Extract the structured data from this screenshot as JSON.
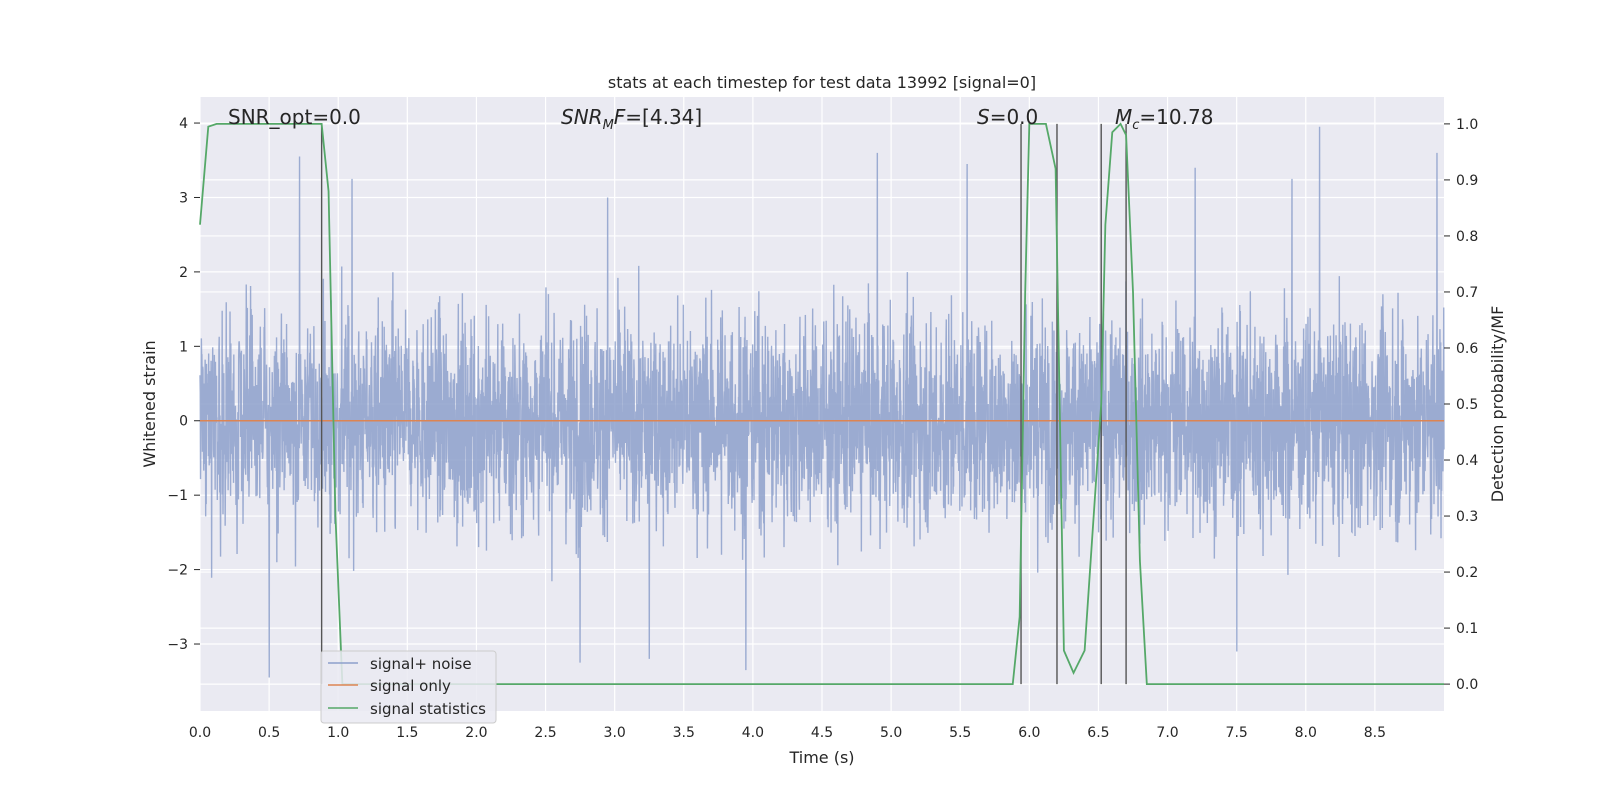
{
  "chart_data": {
    "type": "line",
    "title": "stats at each timestep for test data 13992 [signal=0]",
    "xlabel": "Time (s)",
    "ylabel_left": "Whitened strain",
    "ylabel_right": "Detection probability/MF",
    "xlim": [
      0.0,
      9.0
    ],
    "ylim_left": [
      -3.9,
      4.35
    ],
    "ylim_right": [
      -0.048,
      1.048
    ],
    "x_ticks": [
      "0.0",
      "0.5",
      "1.0",
      "1.5",
      "2.0",
      "2.5",
      "3.0",
      "3.5",
      "4.0",
      "4.5",
      "5.0",
      "5.5",
      "6.0",
      "6.5",
      "7.0",
      "7.5",
      "8.0",
      "8.5"
    ],
    "y_ticks_left": [
      "−3",
      "−2",
      "−1",
      "0",
      "1",
      "2",
      "3",
      "4"
    ],
    "y_ticks_right": [
      "0.0",
      "0.1",
      "0.2",
      "0.3",
      "0.4",
      "0.5",
      "0.6",
      "0.7",
      "0.8",
      "0.9",
      "1.0"
    ],
    "grid": true,
    "annotations": [
      {
        "text": "SNR_opt=0.0",
        "x": 0.2
      },
      {
        "text": "SNR_MF=[4.34]",
        "x": 2.6
      },
      {
        "text": "S=0.0",
        "x": 5.6
      },
      {
        "text": "M_c=10.78",
        "x": 6.6
      }
    ],
    "vertical_lines": [
      0.88,
      5.94,
      6.2,
      6.52,
      6.7
    ],
    "series": [
      {
        "name": "signal+ noise",
        "color": "#8da0cb",
        "description": "whitened strain noise, amplitude ~ +/-2 with peaks to 3.5",
        "peaks": [
          {
            "x": 0.72,
            "y": 3.55
          },
          {
            "x": 1.1,
            "y": 3.25
          },
          {
            "x": 2.95,
            "y": 3.0
          },
          {
            "x": 4.9,
            "y": 3.6
          },
          {
            "x": 5.55,
            "y": 3.45
          },
          {
            "x": 7.2,
            "y": 3.4
          },
          {
            "x": 7.9,
            "y": 3.25
          },
          {
            "x": 8.1,
            "y": 3.95
          },
          {
            "x": 8.95,
            "y": 3.6
          },
          {
            "x": 0.5,
            "y": -3.45
          },
          {
            "x": 3.25,
            "y": -3.2
          },
          {
            "x": 3.95,
            "y": -3.35
          },
          {
            "x": 2.75,
            "y": -3.25
          },
          {
            "x": 7.5,
            "y": -3.1
          }
        ]
      },
      {
        "name": "signal only",
        "color": "#dd8452",
        "x": [
          0.0,
          9.0
        ],
        "y": [
          0.0,
          0.0
        ]
      },
      {
        "name": "signal statistics",
        "color": "#55a868",
        "axis": "right",
        "x": [
          0.0,
          0.06,
          0.12,
          0.8,
          0.88,
          0.93,
          0.98,
          1.03,
          5.88,
          5.93,
          5.97,
          6.0,
          6.12,
          6.19,
          6.25,
          6.32,
          6.4,
          6.52,
          6.55,
          6.6,
          6.66,
          6.7,
          6.75,
          6.8,
          6.85,
          8.8,
          9.0
        ],
        "y": [
          0.82,
          0.995,
          1.0,
          1.0,
          1.0,
          0.88,
          0.3,
          0.0,
          0.0,
          0.12,
          0.7,
          1.0,
          1.0,
          0.92,
          0.06,
          0.02,
          0.06,
          0.5,
          0.82,
          0.985,
          1.0,
          0.98,
          0.7,
          0.22,
          0.0,
          0.0,
          0.0
        ]
      }
    ],
    "legend": {
      "placement": "lower-left",
      "entries": [
        "signal+ noise",
        "signal only",
        "signal statistics"
      ]
    }
  }
}
